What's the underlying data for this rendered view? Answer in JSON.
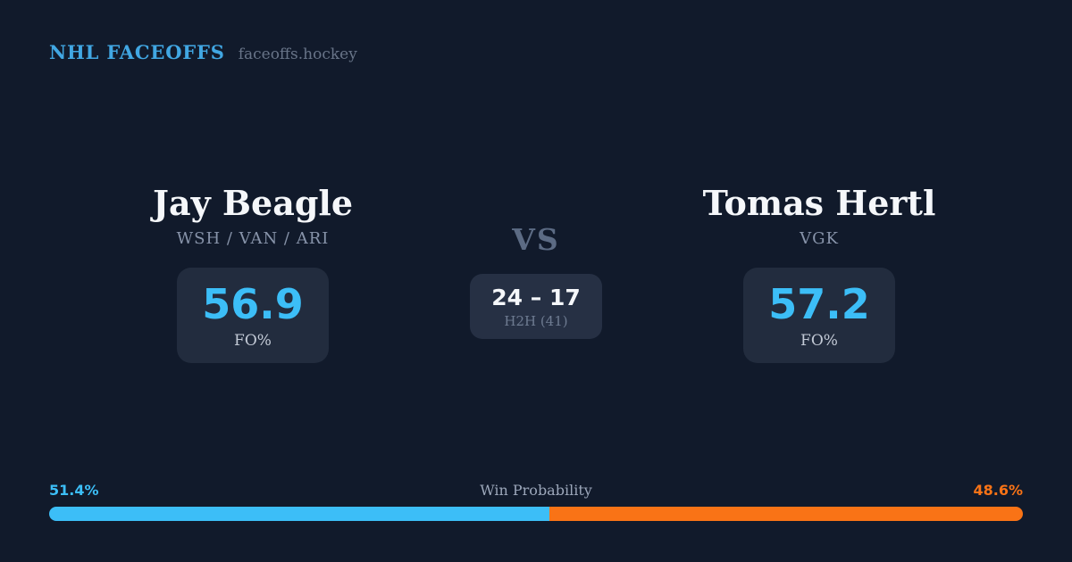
{
  "brand": {
    "title": "NHL FACEOFFS",
    "domain": "faceoffs.hockey"
  },
  "matchup": {
    "vs_label": "VS",
    "player_left": {
      "name": "Jay Beagle",
      "teams": "WSH / VAN / ARI",
      "fo_value": "56.9",
      "fo_label": "FO%"
    },
    "player_right": {
      "name": "Tomas Hertl",
      "teams": "VGK",
      "fo_value": "57.2",
      "fo_label": "FO%"
    },
    "h2h": {
      "score": "24 – 17",
      "label": "H2H (41)"
    }
  },
  "win_probability": {
    "title": "Win Probability",
    "left_pct_label": "51.4%",
    "right_pct_label": "48.6%",
    "left_value": 51.4,
    "right_value": 48.6,
    "left_color": "#3cbef7",
    "right_color": "#f97316"
  },
  "colors": {
    "background": "#111a2b",
    "panel": "#222c3e",
    "panel_h2h": "#263044",
    "accent_blue": "#3cbef7",
    "accent_orange": "#f97316",
    "brand_blue": "#41a7e3",
    "text_white": "#f5f7fa",
    "text_muted": "#8793a9"
  }
}
